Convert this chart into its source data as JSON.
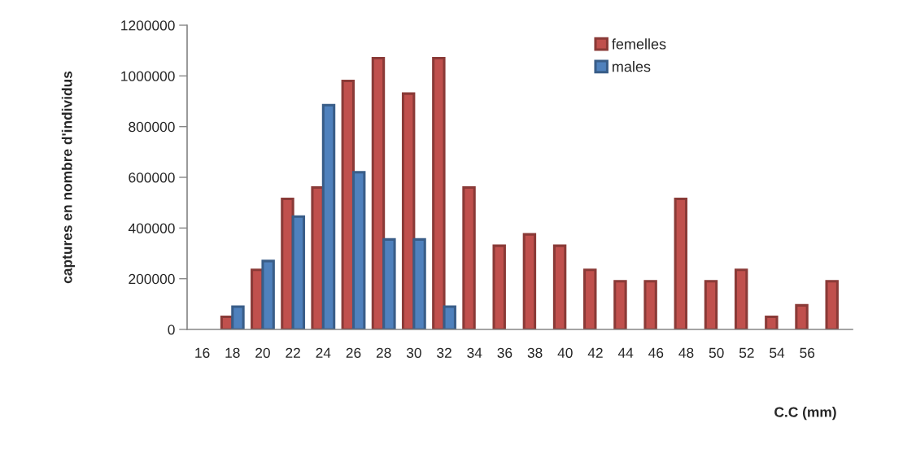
{
  "chart_data": {
    "type": "bar",
    "xlabel": "C.C (mm)",
    "ylabel": "captures en nombre d'individus",
    "categories": [
      "16",
      "18",
      "20",
      "22",
      "24",
      "26",
      "28",
      "30",
      "32",
      "34",
      "36",
      "38",
      "40",
      "42",
      "44",
      "46",
      "48",
      "50",
      "52",
      "54",
      "56",
      null
    ],
    "series": [
      {
        "name": "femelles",
        "color": "#c0504d",
        "values": [
          null,
          50000,
          235000,
          515000,
          560000,
          980000,
          1070000,
          930000,
          1070000,
          560000,
          330000,
          375000,
          330000,
          235000,
          190000,
          190000,
          515000,
          190000,
          235000,
          50000,
          95000,
          190000
        ]
      },
      {
        "name": "males",
        "color": "#4f81bd",
        "values": [
          null,
          90000,
          270000,
          445000,
          885000,
          620000,
          355000,
          355000,
          90000,
          null,
          null,
          null,
          null,
          null,
          null,
          null,
          null,
          null,
          null,
          null,
          null,
          null
        ]
      }
    ],
    "ylim": [
      0,
      1200000
    ],
    "yticks": [
      0,
      200000,
      400000,
      600000,
      800000,
      1000000,
      1200000
    ],
    "grid": false,
    "legend": "top right"
  }
}
